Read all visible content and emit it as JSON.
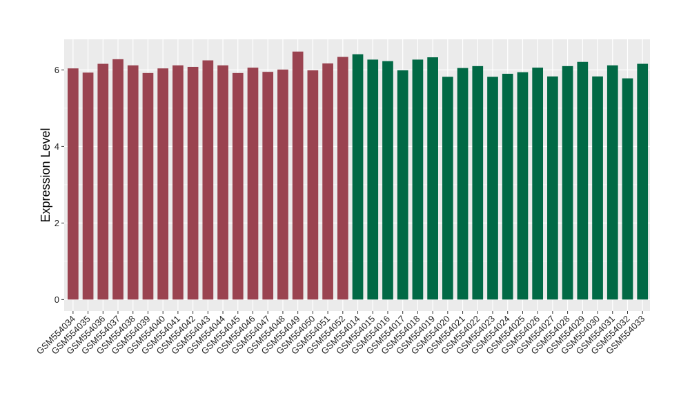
{
  "chart_data": {
    "type": "bar",
    "title": "",
    "xlabel": "",
    "ylabel": "Expression Level",
    "ylim": [
      -0.3,
      6.8
    ],
    "yticks": [
      0,
      2,
      4,
      6
    ],
    "grid": true,
    "legend": "none",
    "colors": {
      "group1": "#9a4350",
      "group2": "#016945",
      "panel_bg": "#ebebeb",
      "grid": "#ffffff"
    },
    "categories": [
      "GSM554034",
      "GSM554035",
      "GSM554036",
      "GSM554037",
      "GSM554038",
      "GSM554039",
      "GSM554040",
      "GSM554041",
      "GSM554042",
      "GSM554043",
      "GSM554044",
      "GSM554045",
      "GSM554046",
      "GSM554047",
      "GSM554048",
      "GSM554049",
      "GSM554050",
      "GSM554051",
      "GSM554052",
      "GSM554014",
      "GSM554015",
      "GSM554016",
      "GSM554017",
      "GSM554018",
      "GSM554019",
      "GSM554020",
      "GSM554021",
      "GSM554022",
      "GSM554023",
      "GSM554024",
      "GSM554025",
      "GSM554026",
      "GSM554027",
      "GSM554028",
      "GSM554029",
      "GSM554030",
      "GSM554031",
      "GSM554032",
      "GSM554033"
    ],
    "values": [
      6.04,
      5.93,
      6.16,
      6.28,
      6.12,
      5.92,
      6.04,
      6.12,
      6.08,
      6.25,
      6.12,
      5.92,
      6.06,
      5.95,
      6.01,
      6.48,
      5.99,
      6.17,
      6.34,
      6.41,
      6.27,
      6.23,
      5.99,
      6.27,
      6.33,
      5.82,
      6.05,
      6.1,
      5.82,
      5.9,
      5.94,
      6.06,
      5.83,
      6.1,
      6.21,
      5.83,
      6.12,
      5.78,
      6.16
    ],
    "groups": [
      1,
      1,
      1,
      1,
      1,
      1,
      1,
      1,
      1,
      1,
      1,
      1,
      1,
      1,
      1,
      1,
      1,
      1,
      1,
      2,
      2,
      2,
      2,
      2,
      2,
      2,
      2,
      2,
      2,
      2,
      2,
      2,
      2,
      2,
      2,
      2,
      2,
      2,
      2
    ]
  }
}
